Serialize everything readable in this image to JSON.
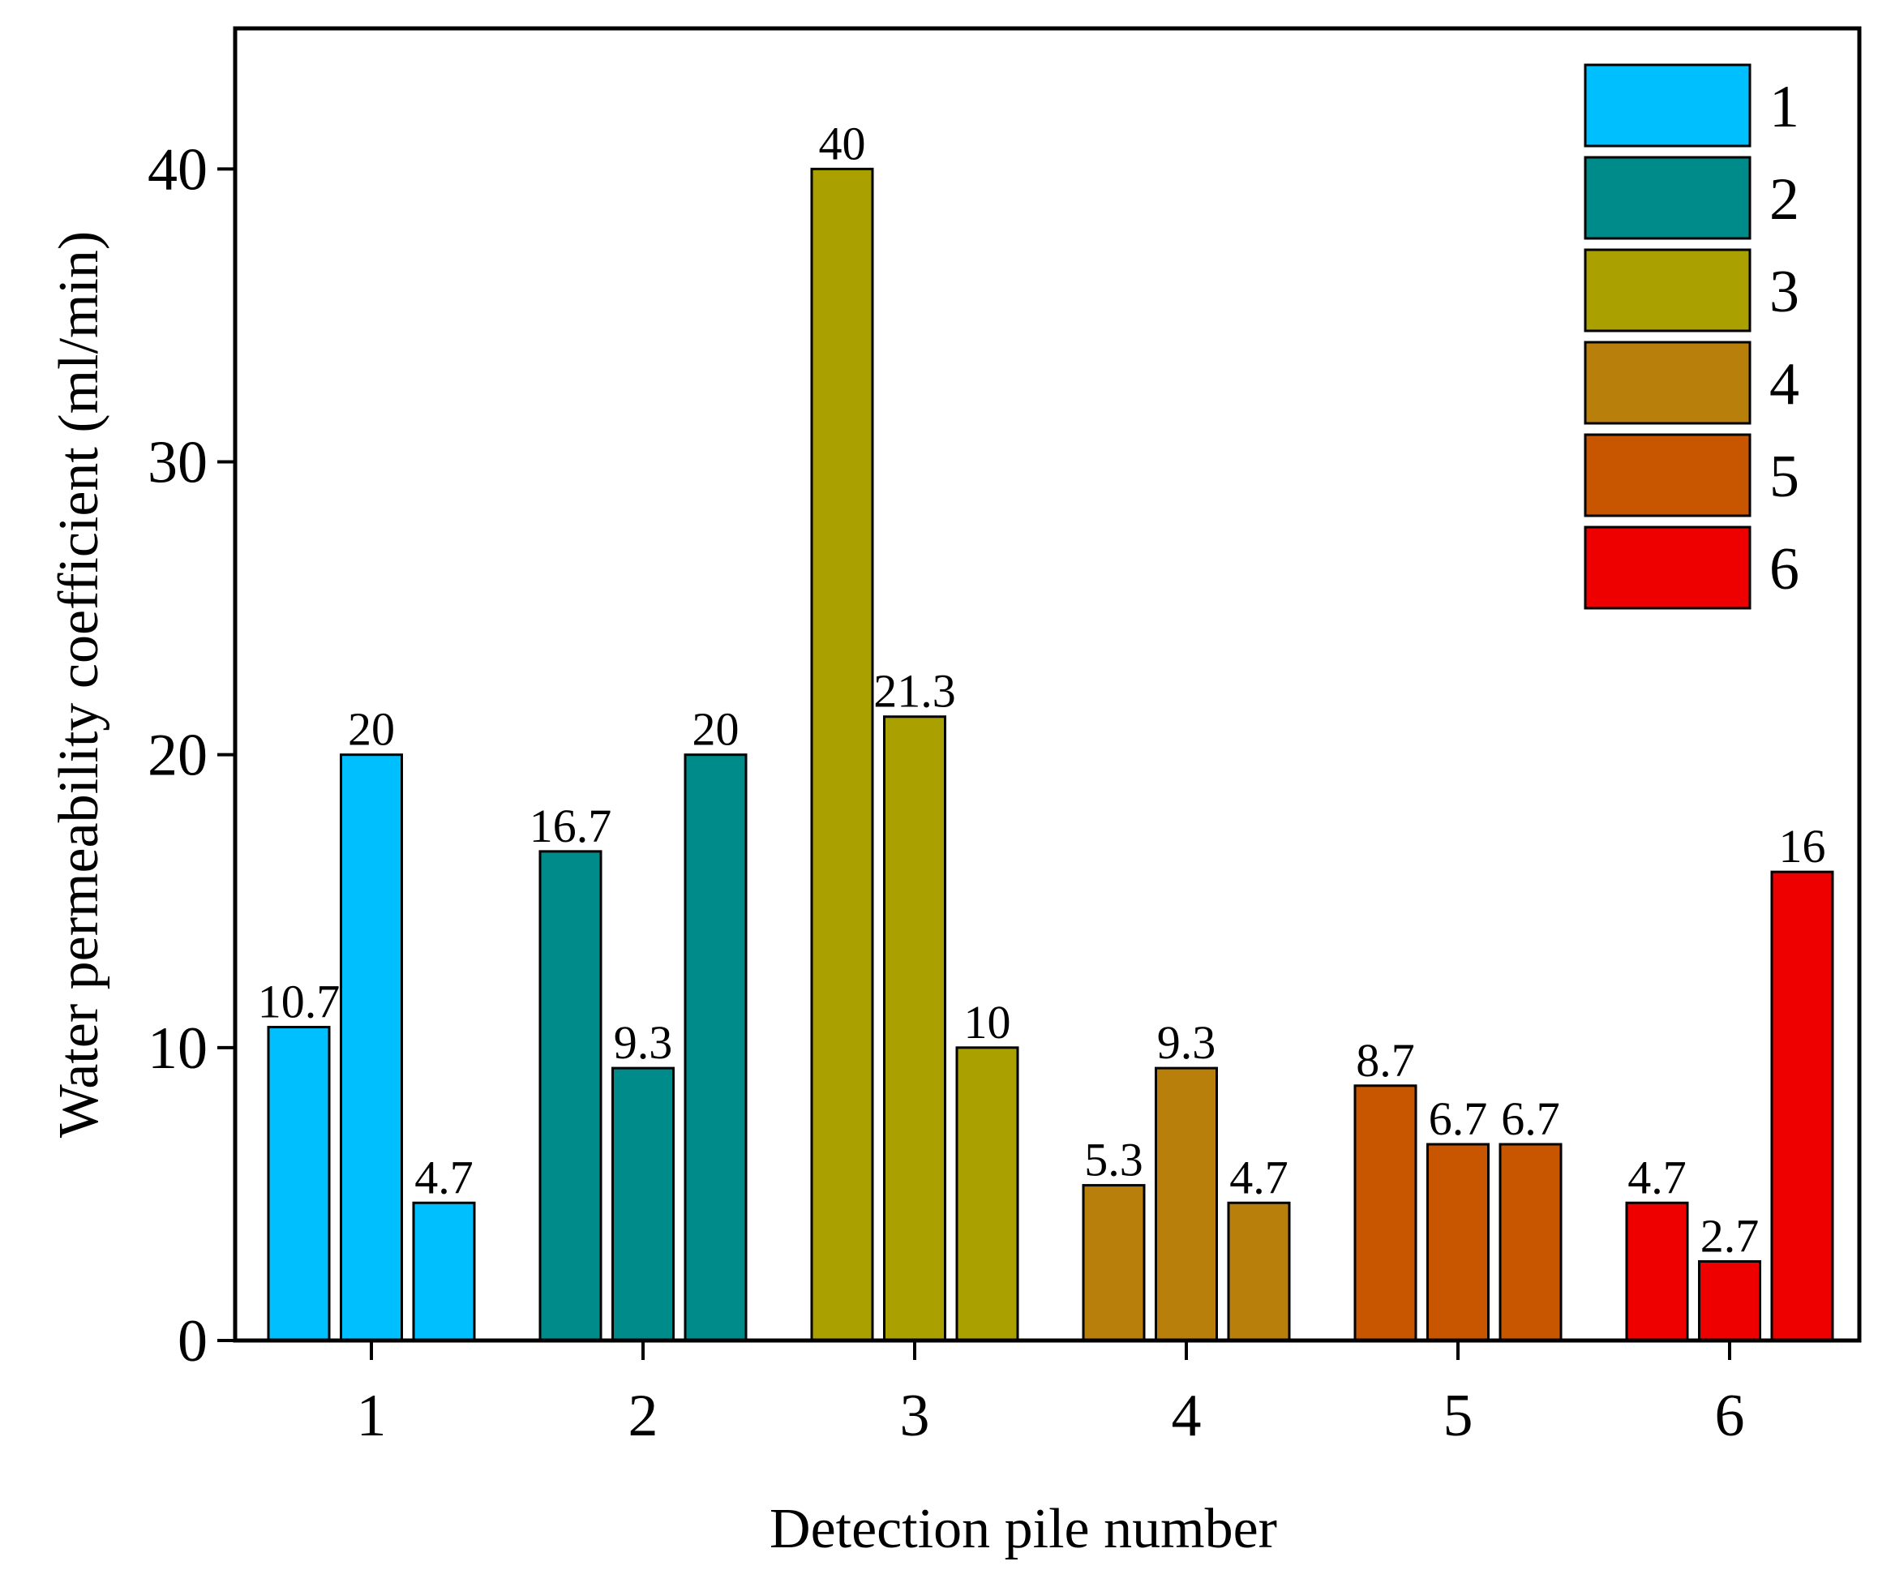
{
  "chart_data": {
    "type": "bar",
    "title": "",
    "xlabel": "Detection pile number",
    "ylabel": "Water permeability coefficient (ml/min)",
    "categories": [
      "1",
      "2",
      "3",
      "4",
      "5",
      "6"
    ],
    "groups": [
      {
        "pile": "1",
        "color": "#00BFFF",
        "values": [
          10.7,
          20,
          4.7
        ],
        "labels": [
          "10.7",
          "20",
          "4.7"
        ]
      },
      {
        "pile": "2",
        "color": "#008B8B",
        "values": [
          16.7,
          9.3,
          20
        ],
        "labels": [
          "16.7",
          "9.3",
          "20"
        ]
      },
      {
        "pile": "3",
        "color": "#AAA000",
        "values": [
          40,
          21.3,
          10
        ],
        "labels": [
          "40",
          "21.3",
          "10"
        ]
      },
      {
        "pile": "4",
        "color": "#B8800A",
        "values": [
          5.3,
          9.3,
          4.7
        ],
        "labels": [
          "5.3",
          "9.3",
          "4.7"
        ]
      },
      {
        "pile": "5",
        "color": "#C85500",
        "values": [
          8.7,
          6.7,
          6.7
        ],
        "labels": [
          "8.7",
          "6.7",
          "6.7"
        ]
      },
      {
        "pile": "6",
        "color": "#EE0000",
        "values": [
          4.7,
          2.7,
          16
        ],
        "labels": [
          "4.7",
          "2.7",
          "16"
        ]
      }
    ],
    "yticks": [
      0,
      10,
      20,
      30,
      40
    ],
    "ylim": [
      0,
      44.8
    ],
    "grid": false,
    "legend": {
      "position": "top-right",
      "entries": [
        {
          "label": "1",
          "color": "#00BFFF"
        },
        {
          "label": "2",
          "color": "#008B8B"
        },
        {
          "label": "3",
          "color": "#AAA000"
        },
        {
          "label": "4",
          "color": "#B8800A"
        },
        {
          "label": "5",
          "color": "#C85500"
        },
        {
          "label": "6",
          "color": "#EE0000"
        }
      ]
    }
  }
}
